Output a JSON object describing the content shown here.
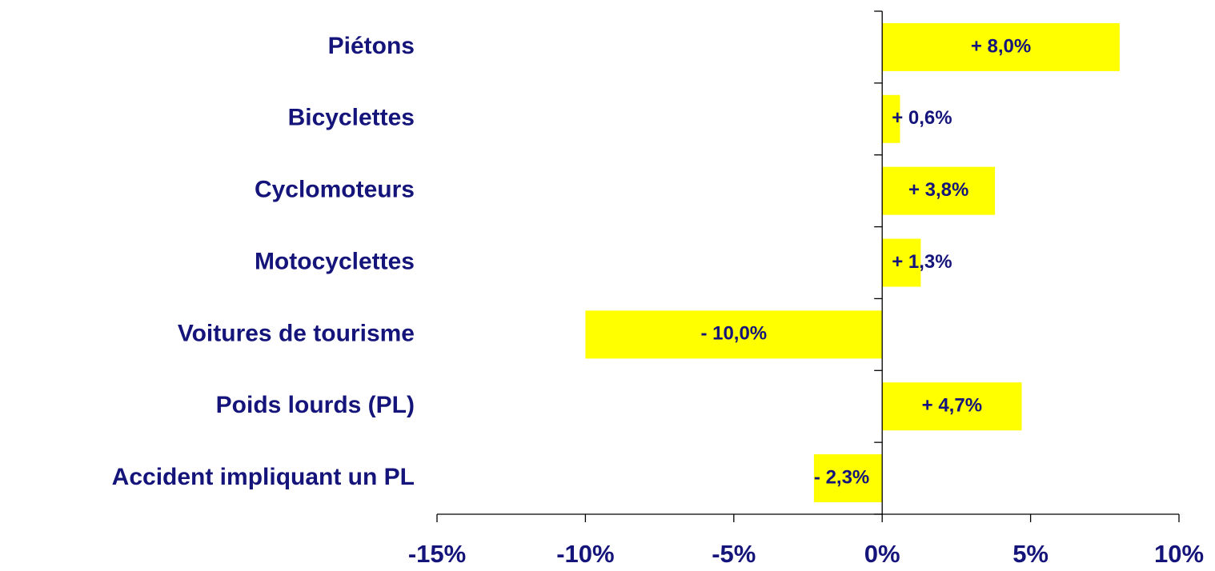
{
  "chart_data": {
    "type": "bar",
    "orientation": "horizontal",
    "categories": [
      "Piétons",
      "Bicyclettes",
      "Cyclomoteurs",
      "Motocyclettes",
      "Voitures de tourisme",
      "Poids lourds (PL)",
      "Accident impliquant un PL"
    ],
    "values": [
      8.0,
      0.6,
      3.8,
      1.3,
      -10.0,
      4.7,
      -2.3
    ],
    "value_labels": [
      "+ 8,0%",
      "+ 0,6%",
      "+ 3,8%",
      "+ 1,3%",
      "- 10,0%",
      "+ 4,7%",
      "- 2,3%"
    ],
    "color": "#ffff00",
    "xlim": [
      -15,
      10
    ],
    "xticks": [
      {
        "value": -15,
        "label": "-15%"
      },
      {
        "value": -10,
        "label": "-10%"
      },
      {
        "value": -5,
        "label": "-5%"
      },
      {
        "value": 0,
        "label": "0%"
      },
      {
        "value": 5,
        "label": "5%"
      },
      {
        "value": 10,
        "label": "10%"
      }
    ]
  }
}
